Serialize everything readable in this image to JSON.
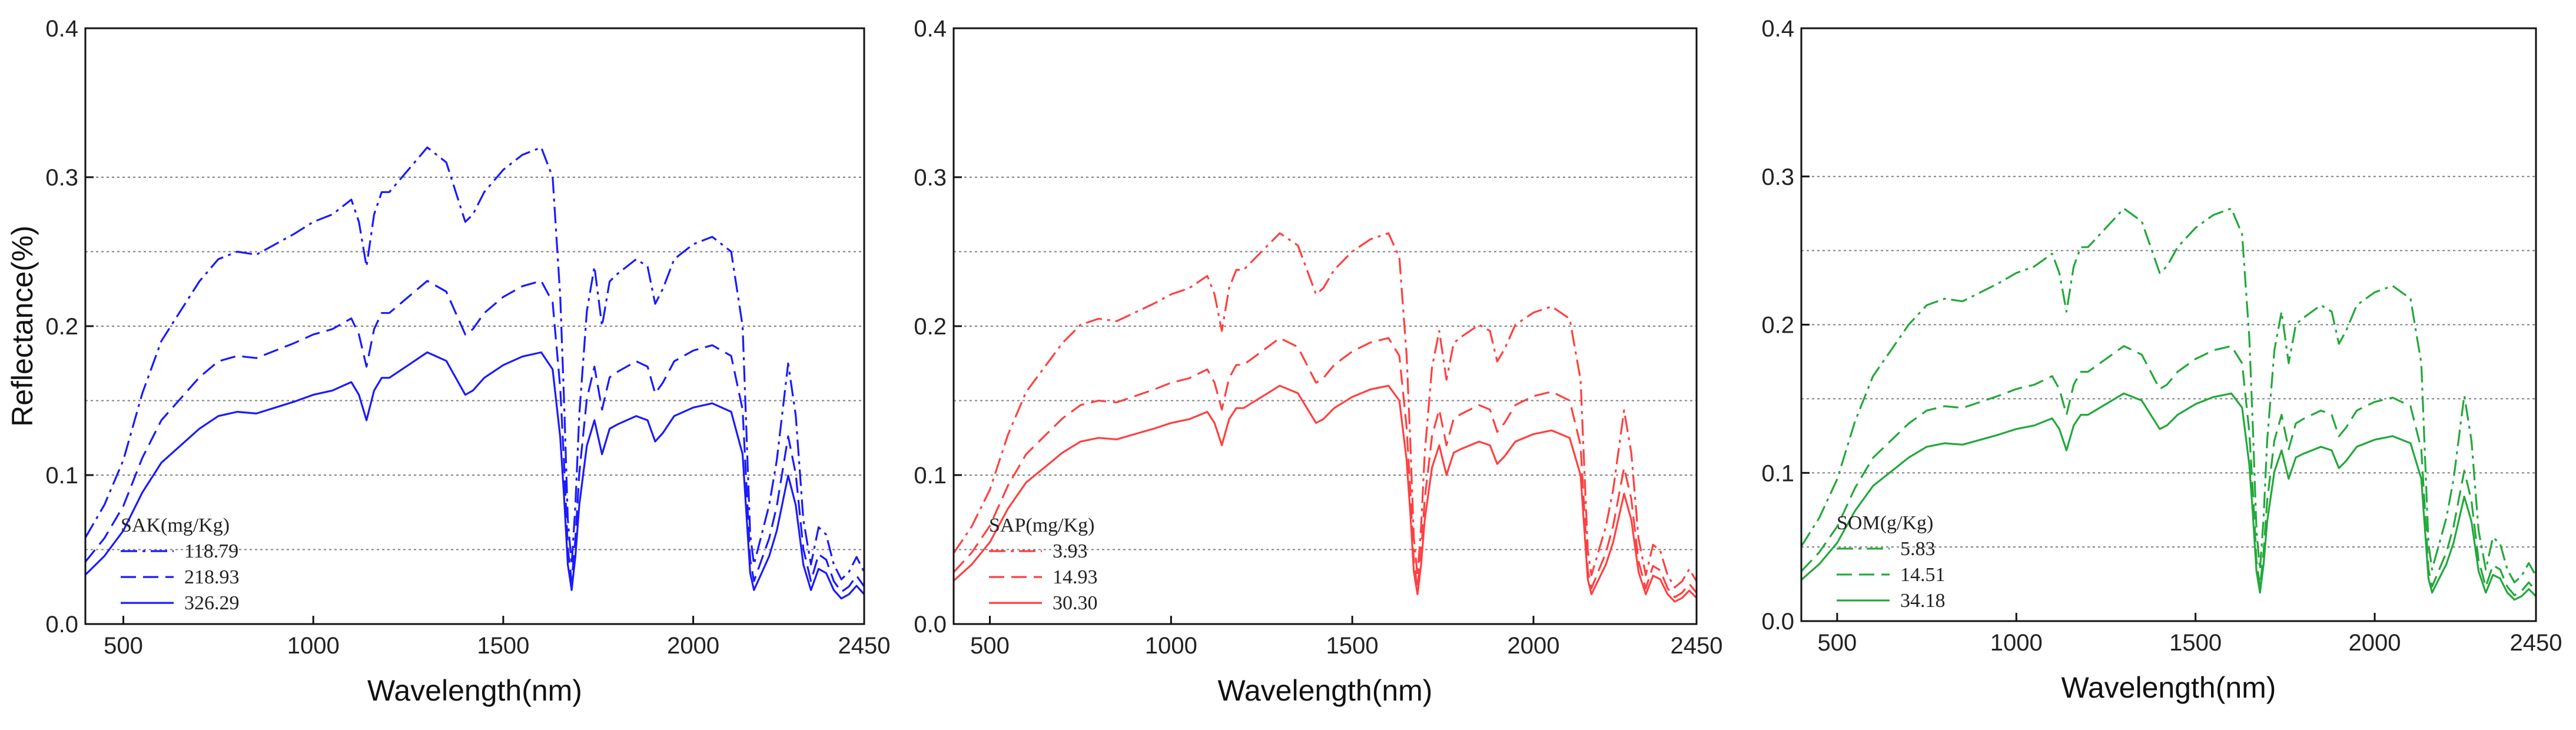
{
  "chart_data": [
    {
      "type": "line",
      "title": "",
      "xlabel": "Wavelength(nm)",
      "ylabel": "Reflectance(%)",
      "xlim": [
        400,
        2450
      ],
      "ylim": [
        0.0,
        0.4
      ],
      "xticks": [
        "500",
        "1000",
        "1500",
        "2000",
        "2450"
      ],
      "yticks": [
        "0.0",
        "0.1",
        "0.2",
        "0.3",
        "0.4"
      ],
      "gridlines_y": [
        0.05,
        0.1,
        0.15,
        0.2,
        0.25,
        0.3
      ],
      "color": "#1a1aff",
      "legend": {
        "title": "SAK(mg/Kg)",
        "placement": "lower-left"
      },
      "series": [
        {
          "name": "118.79",
          "style": "dash-dot",
          "scale": 1.0
        },
        {
          "name": "218.93",
          "style": "dashed",
          "scale": 0.72
        },
        {
          "name": "326.29",
          "style": "solid",
          "scale": 0.57
        }
      ]
    },
    {
      "type": "line",
      "title": "",
      "xlabel": "Wavelength(nm)",
      "ylabel": "",
      "xlim": [
        400,
        2450
      ],
      "ylim": [
        0.0,
        0.4
      ],
      "xticks": [
        "500",
        "1000",
        "1500",
        "2000",
        "2450"
      ],
      "yticks": [
        "0.0",
        "0.1",
        "0.2",
        "0.3",
        "0.4"
      ],
      "gridlines_y": [
        0.05,
        0.1,
        0.15,
        0.2,
        0.25,
        0.3
      ],
      "color": "#ff4040",
      "legend": {
        "title": "SAP(mg/Kg)",
        "placement": "lower-left"
      },
      "series": [
        {
          "name": "3.93",
          "style": "dash-dot",
          "scale": 0.82
        },
        {
          "name": "14.93",
          "style": "dashed",
          "scale": 0.6
        },
        {
          "name": "30.30",
          "style": "solid",
          "scale": 0.5
        }
      ]
    },
    {
      "type": "line",
      "title": "",
      "xlabel": "Wavelength(nm)",
      "ylabel": "",
      "xlim": [
        400,
        2450
      ],
      "ylim": [
        0.0,
        0.4
      ],
      "xticks": [
        "500",
        "1000",
        "1500",
        "2000",
        "2450"
      ],
      "yticks": [
        "0.0",
        "0.1",
        "0.2",
        "0.3",
        "0.4"
      ],
      "gridlines_y": [
        0.05,
        0.1,
        0.15,
        0.2,
        0.25,
        0.3
      ],
      "color": "#22a83a",
      "legend": {
        "title": "SOM(g/Kg)",
        "placement": "lower-left"
      },
      "series": [
        {
          "name": "5.83",
          "style": "dash-dot",
          "scale": 0.87
        },
        {
          "name": "14.51",
          "style": "dashed",
          "scale": 0.58
        },
        {
          "name": "34.18",
          "style": "solid",
          "scale": 0.48
        }
      ]
    }
  ],
  "base_spectrum": {
    "description_units": "reflectance, data units",
    "wavelength": [
      400,
      450,
      500,
      550,
      600,
      650,
      700,
      750,
      800,
      850,
      900,
      950,
      1000,
      1050,
      1100,
      1120,
      1140,
      1160,
      1180,
      1200,
      1250,
      1300,
      1350,
      1400,
      1420,
      1450,
      1500,
      1550,
      1600,
      1630,
      1650,
      1660,
      1670,
      1680,
      1690,
      1700,
      1720,
      1740,
      1760,
      1780,
      1800,
      1850,
      1880,
      1900,
      1920,
      1950,
      2000,
      2050,
      2100,
      2130,
      2150,
      2160,
      2180,
      2200,
      2220,
      2250,
      2270,
      2290,
      2310,
      2330,
      2350,
      2370,
      2390,
      2410,
      2430,
      2450
    ],
    "reflectance": [
      0.058,
      0.08,
      0.11,
      0.155,
      0.19,
      0.21,
      0.23,
      0.245,
      0.25,
      0.248,
      0.255,
      0.262,
      0.27,
      0.275,
      0.285,
      0.27,
      0.24,
      0.275,
      0.29,
      0.29,
      0.305,
      0.32,
      0.31,
      0.27,
      0.275,
      0.29,
      0.305,
      0.315,
      0.32,
      0.3,
      0.22,
      0.15,
      0.07,
      0.04,
      0.08,
      0.14,
      0.21,
      0.24,
      0.2,
      0.23,
      0.235,
      0.245,
      0.24,
      0.215,
      0.225,
      0.245,
      0.255,
      0.26,
      0.25,
      0.2,
      0.06,
      0.04,
      0.06,
      0.08,
      0.11,
      0.175,
      0.14,
      0.07,
      0.04,
      0.065,
      0.06,
      0.04,
      0.03,
      0.035,
      0.045,
      0.035
    ]
  }
}
